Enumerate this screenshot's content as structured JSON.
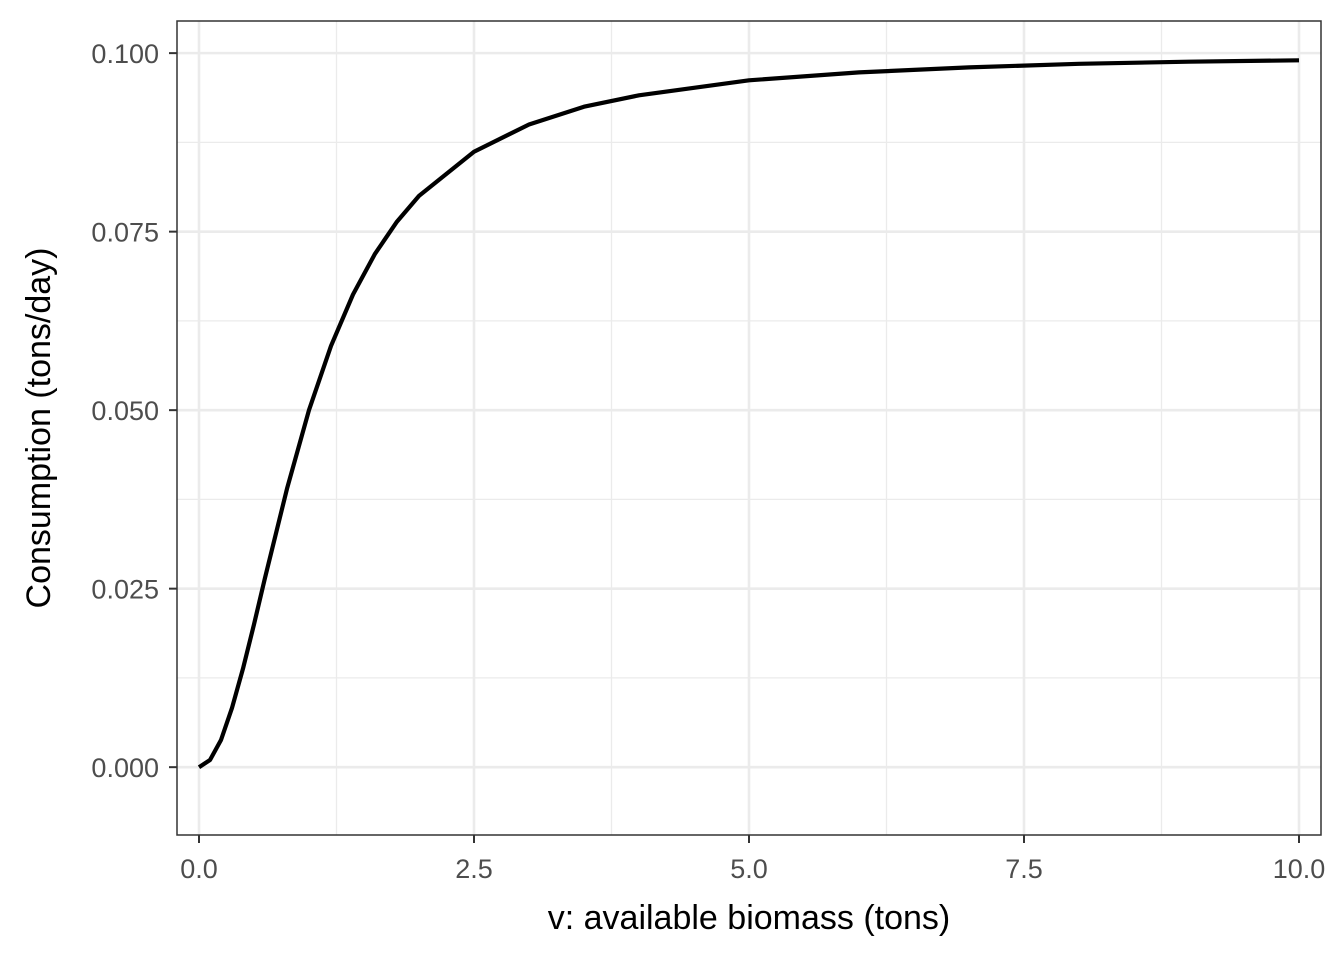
{
  "chart_data": {
    "type": "line",
    "title": "",
    "xlabel": "v: available biomass (tons)",
    "ylabel": "Consumption (tons/day)",
    "xlim": [
      -0.2,
      10.2
    ],
    "ylim": [
      -0.0095,
      0.1045
    ],
    "x_ticks": [
      0,
      2.5,
      5,
      7.5,
      10
    ],
    "x_tick_labels": [
      "0.0",
      "2.5",
      "5.0",
      "7.5",
      "10.0"
    ],
    "x_minor_ticks": [
      1.25,
      3.75,
      6.25,
      8.75
    ],
    "y_ticks": [
      0,
      0.025,
      0.05,
      0.075,
      0.1
    ],
    "y_tick_labels": [
      "0.000",
      "0.025",
      "0.050",
      "0.075",
      "0.100"
    ],
    "y_minor_ticks": [
      0.0125,
      0.0375,
      0.0625,
      0.0875
    ],
    "grid": true,
    "legend": "none",
    "colors": {
      "line": "#000000",
      "grid": "#ebebeb",
      "tick_text": "#4d4d4d",
      "border": "#333333"
    },
    "series": [
      {
        "x": [
          0,
          0.1,
          0.2,
          0.3,
          0.4,
          0.5,
          0.6,
          0.8,
          1.0,
          1.2,
          1.4,
          1.6,
          1.8,
          2.0,
          2.5,
          3.0,
          3.5,
          4.0,
          5.0,
          6.0,
          7.0,
          8.0,
          9.0,
          10.0
        ],
        "values": [
          0.0,
          0.001,
          0.0038,
          0.0083,
          0.0138,
          0.02,
          0.0265,
          0.039,
          0.05,
          0.059,
          0.0662,
          0.0719,
          0.0764,
          0.08,
          0.0862,
          0.09,
          0.0925,
          0.0941,
          0.0962,
          0.0973,
          0.098,
          0.0985,
          0.0988,
          0.099
        ]
      }
    ]
  }
}
